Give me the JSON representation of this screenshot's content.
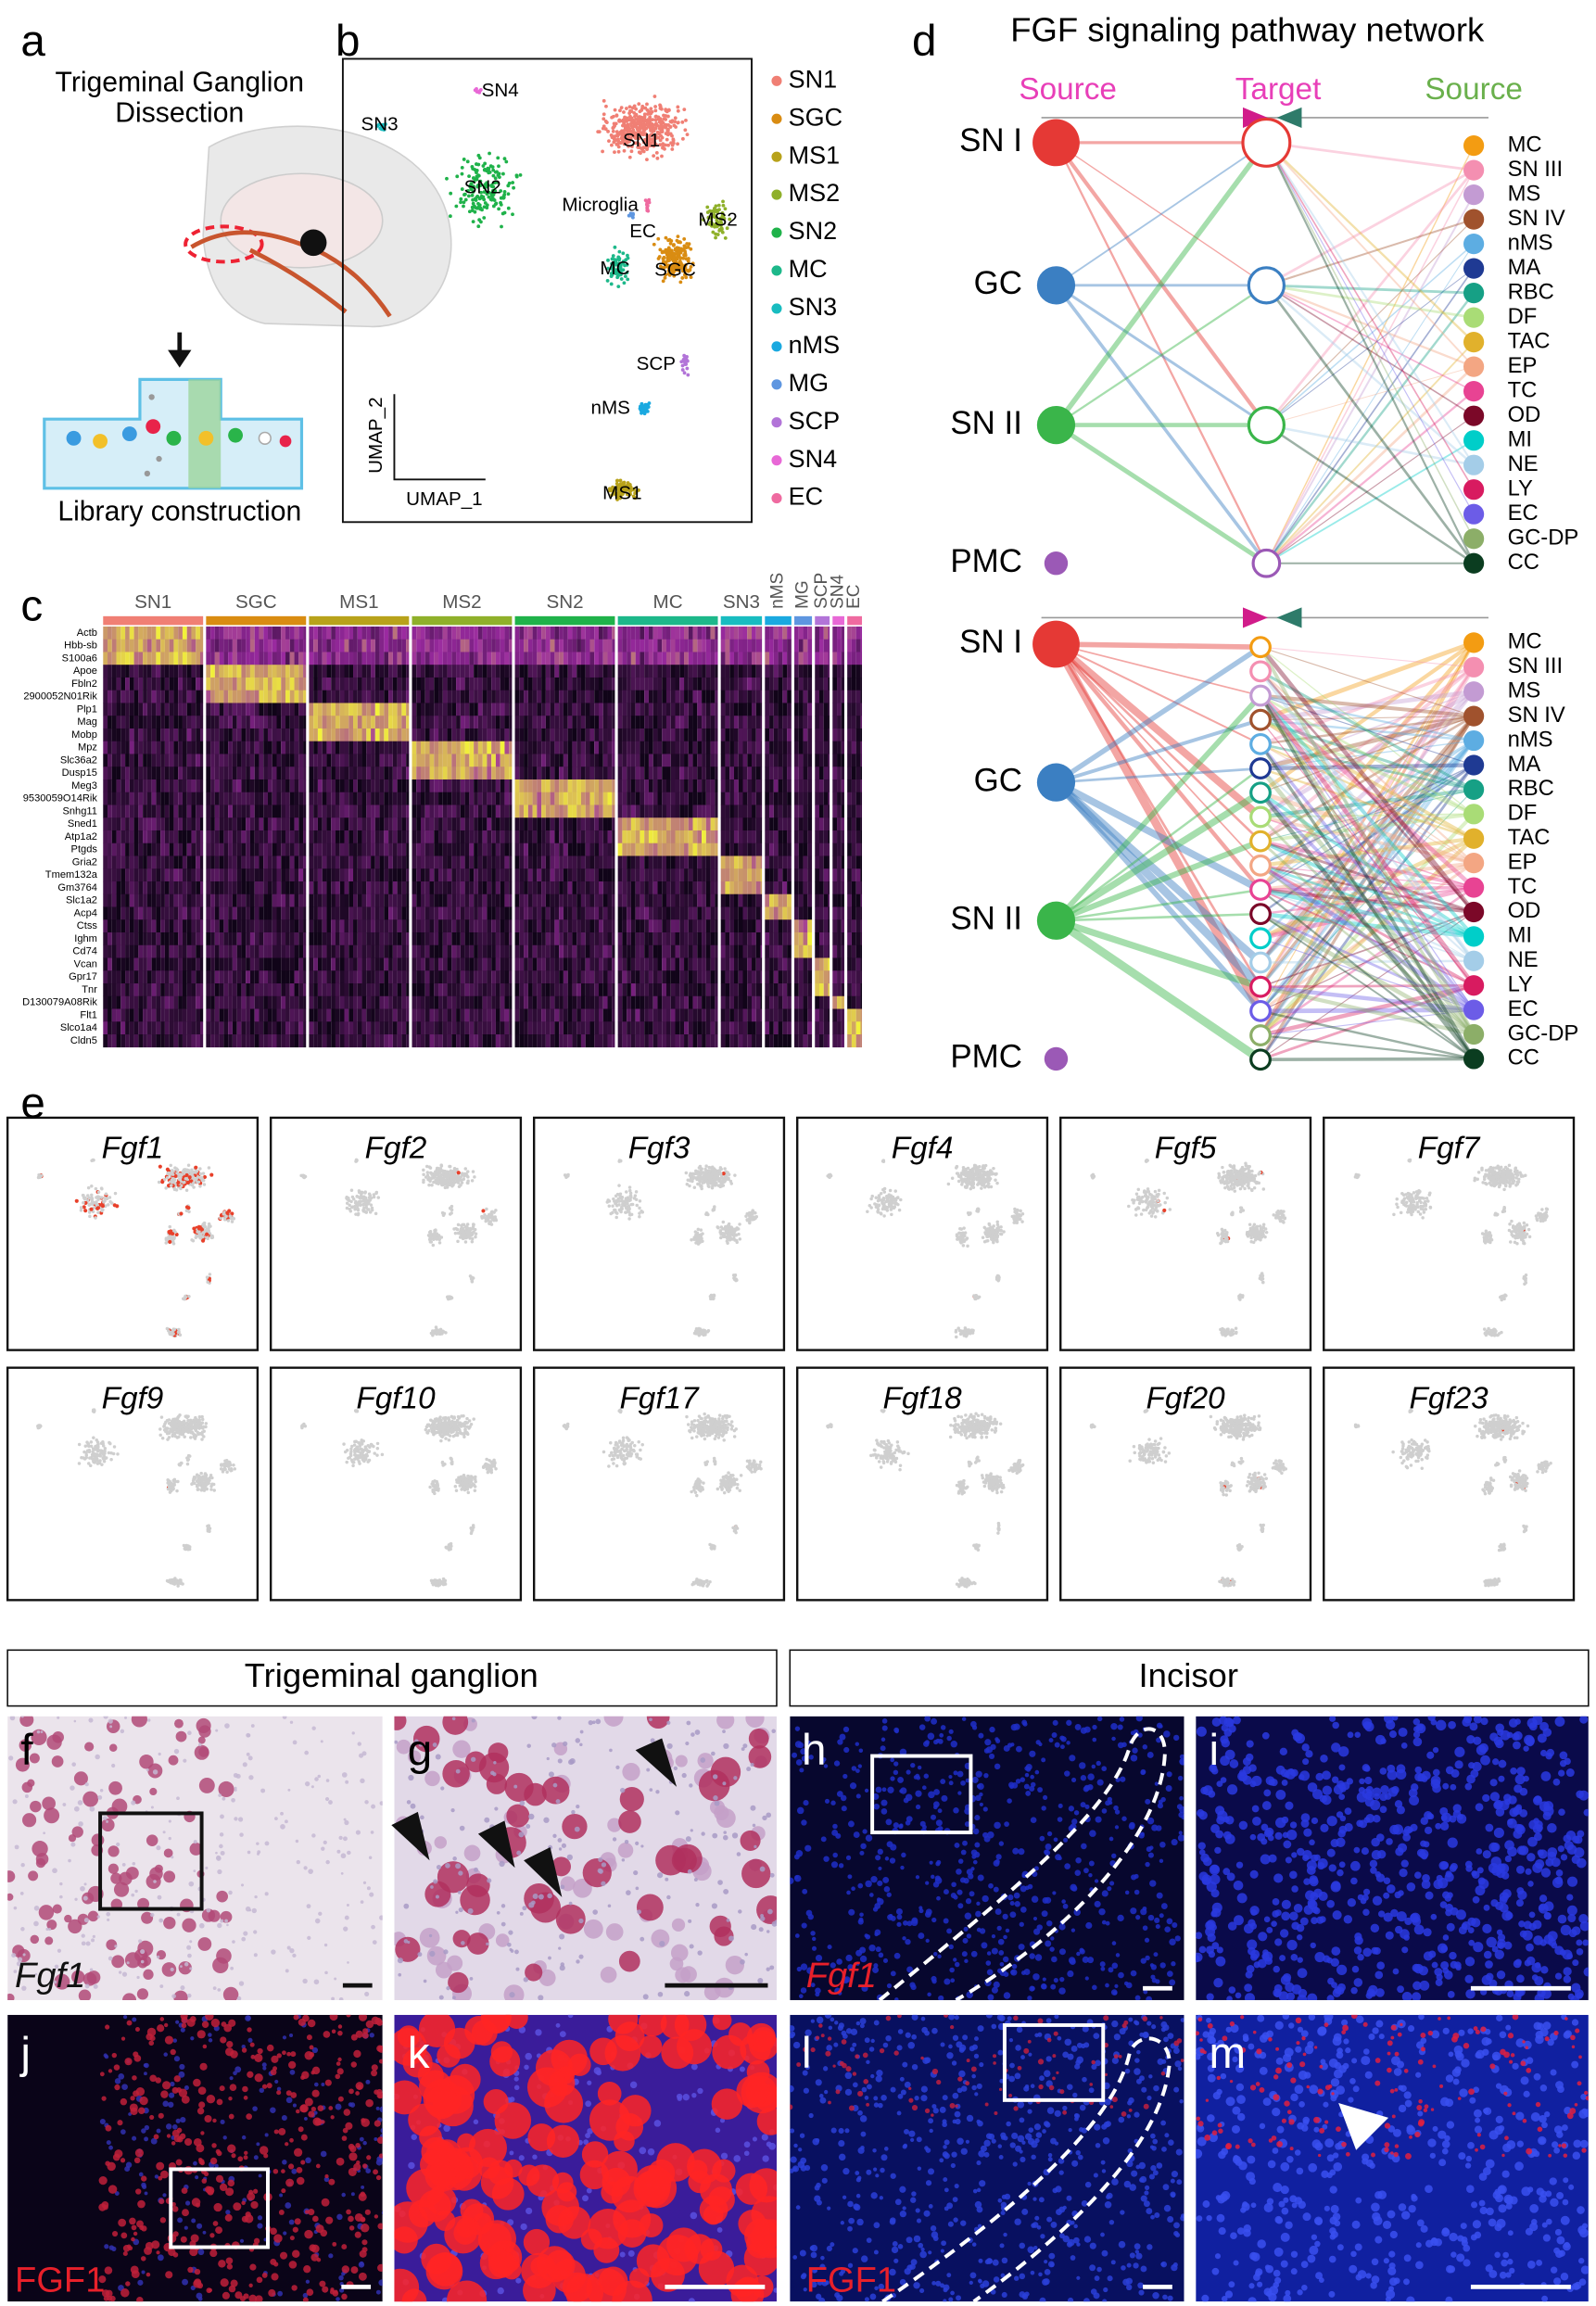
{
  "panel_labels": [
    "a",
    "b",
    "c",
    "d",
    "e",
    "f",
    "g",
    "h",
    "i",
    "j",
    "k",
    "l",
    "m"
  ],
  "panel_a": {
    "title_lines": [
      "Trigeminal Ganglion",
      "Dissection"
    ],
    "caption": "Library construction"
  },
  "panel_b": {
    "axis_x": "UMAP_1",
    "axis_y": "UMAP_2",
    "cluster_labels": [
      "SN4",
      "SN3",
      "SN1",
      "SN2",
      "Microglia",
      "EC",
      "MS2",
      "MC",
      "SGC",
      "SCP",
      "nMS",
      "MS1"
    ],
    "legend": [
      {
        "name": "SN1",
        "color": "#f07f74"
      },
      {
        "name": "SGC",
        "color": "#d98c12"
      },
      {
        "name": "MS1",
        "color": "#b8a21a"
      },
      {
        "name": "MS2",
        "color": "#8fb02a"
      },
      {
        "name": "SN2",
        "color": "#1fb24a"
      },
      {
        "name": "MC",
        "color": "#1db88a"
      },
      {
        "name": "SN3",
        "color": "#18bcc0"
      },
      {
        "name": "nMS",
        "color": "#1aa9e0"
      },
      {
        "name": "MG",
        "color": "#5e96e0"
      },
      {
        "name": "SCP",
        "color": "#b274d8"
      },
      {
        "name": "SN4",
        "color": "#e868d6"
      },
      {
        "name": "EC",
        "color": "#ef6aa0"
      }
    ]
  },
  "panel_c": {
    "groups": [
      "SN1",
      "SGC",
      "MS1",
      "MS2",
      "SN2",
      "MC",
      "SN3",
      "nMS",
      "MG",
      "SCP",
      "SN4",
      "EC"
    ],
    "genes": [
      "Actb",
      "Hbb-sb",
      "S100a6",
      "Apoe",
      "Fbln2",
      "2900052N01Rik",
      "Plp1",
      "Mag",
      "Mobp",
      "Mpz",
      "Slc36a2",
      "Dusp15",
      "Meg3",
      "9530059O14Rik",
      "Snhg11",
      "Sned1",
      "Atp1a2",
      "Ptgds",
      "Gria2",
      "Tmem132a",
      "Gm3764",
      "Slc1a2",
      "Acp4",
      "Ctss",
      "Ighm",
      "Cd74",
      "Vcan",
      "Gpr17",
      "Tnr",
      "D130079A08Rik",
      "Flt1",
      "Slco1a4",
      "Cldn5"
    ]
  },
  "panel_d": {
    "title": "FGF signaling pathway network",
    "headers": [
      "Source",
      "Target",
      "Source"
    ],
    "sources": [
      {
        "name": "SN I",
        "color": "#e53935"
      },
      {
        "name": "GC",
        "color": "#3b7fc2"
      },
      {
        "name": "SN II",
        "color": "#3ab54a"
      },
      {
        "name": "PMC",
        "color": "#9b59b6"
      }
    ],
    "targets": [
      {
        "name": "MC",
        "color": "#f39c12"
      },
      {
        "name": "SN III",
        "color": "#f48fb1"
      },
      {
        "name": "MS",
        "color": "#c39bd3"
      },
      {
        "name": "SN IV",
        "color": "#a0522d"
      },
      {
        "name": "nMS",
        "color": "#5dade2"
      },
      {
        "name": "MA",
        "color": "#1f3a93"
      },
      {
        "name": "RBC",
        "color": "#16a085"
      },
      {
        "name": "DF",
        "color": "#a9dc76"
      },
      {
        "name": "TAC",
        "color": "#e1b12c"
      },
      {
        "name": "EP",
        "color": "#f3a683"
      },
      {
        "name": "TC",
        "color": "#e84393"
      },
      {
        "name": "OD",
        "color": "#7b0828"
      },
      {
        "name": "MI",
        "color": "#00cec9"
      },
      {
        "name": "NE",
        "color": "#a4cde8"
      },
      {
        "name": "LY",
        "color": "#d81b60"
      },
      {
        "name": "EC",
        "color": "#6c5ce7"
      },
      {
        "name": "GC-DP",
        "color": "#8cae68"
      },
      {
        "name": "CC",
        "color": "#0b3d20"
      }
    ]
  },
  "panel_e": {
    "genes": [
      "Fgf1",
      "Fgf2",
      "Fgf3",
      "Fgf4",
      "Fgf5",
      "Fgf7",
      "Fgf9",
      "Fgf10",
      "Fgf17",
      "Fgf18",
      "Fgf20",
      "Fgf23"
    ]
  },
  "panels_fm": {
    "headers": [
      "Trigeminal ganglion",
      "Incisor"
    ],
    "rna_label": "Fgf1",
    "protein_label": "FGF1"
  }
}
